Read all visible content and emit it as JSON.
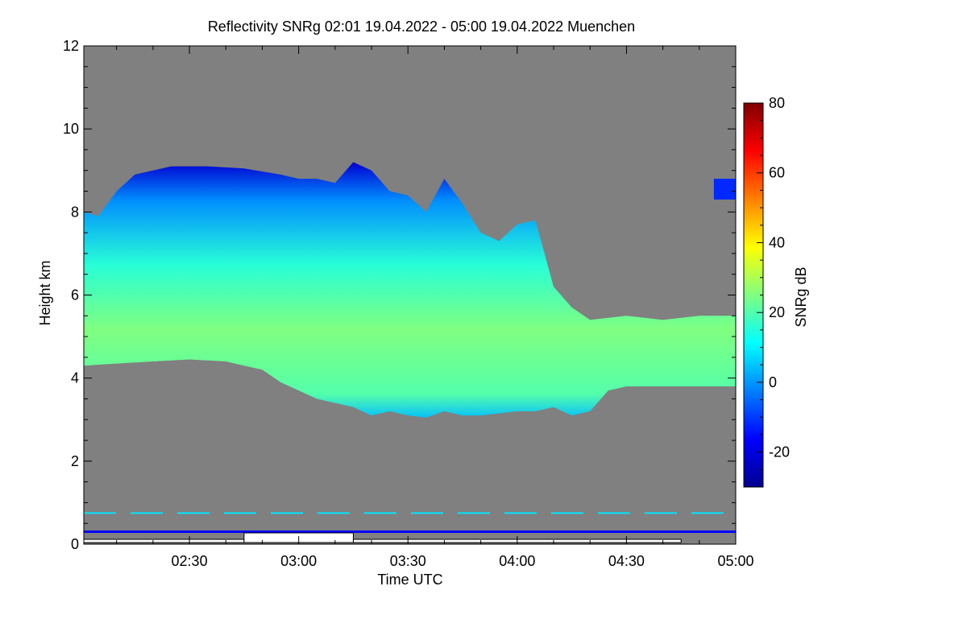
{
  "chart_data": {
    "type": "heatmap",
    "title": "Reflectivity SNRg   02:01 19.04.2022 - 05:00 19.04.2022 Muenchen",
    "xlabel": "Time UTC",
    "ylabel": "Height km",
    "colorbar_label": "SNRg dB",
    "xlim": [
      "02:01",
      "05:00"
    ],
    "ylim": [
      0,
      12
    ],
    "x_ticks": [
      "02:30",
      "03:00",
      "03:30",
      "04:00",
      "04:30",
      "05:00"
    ],
    "y_ticks": [
      0,
      2,
      4,
      6,
      8,
      10,
      12
    ],
    "colorbar_ticks": [
      -20,
      0,
      20,
      40,
      60,
      80
    ],
    "colorbar_range": [
      -30,
      80
    ],
    "background_color": "#808080",
    "colormap": [
      "#00008f",
      "#0000ff",
      "#0080ff",
      "#00ffff",
      "#80ff80",
      "#ffff00",
      "#ff8000",
      "#ff0000",
      "#800000"
    ],
    "cloud": {
      "top_km": [
        {
          "t": "02:01",
          "h": 8.0
        },
        {
          "t": "02:05",
          "h": 7.9
        },
        {
          "t": "02:10",
          "h": 8.5
        },
        {
          "t": "02:15",
          "h": 8.9
        },
        {
          "t": "02:20",
          "h": 9.0
        },
        {
          "t": "02:25",
          "h": 9.1
        },
        {
          "t": "02:35",
          "h": 9.1
        },
        {
          "t": "02:45",
          "h": 9.05
        },
        {
          "t": "02:55",
          "h": 8.9
        },
        {
          "t": "03:00",
          "h": 8.8
        },
        {
          "t": "03:05",
          "h": 8.8
        },
        {
          "t": "03:10",
          "h": 8.7
        },
        {
          "t": "03:15",
          "h": 9.2
        },
        {
          "t": "03:20",
          "h": 9.0
        },
        {
          "t": "03:25",
          "h": 8.5
        },
        {
          "t": "03:30",
          "h": 8.4
        },
        {
          "t": "03:35",
          "h": 8.0
        },
        {
          "t": "03:40",
          "h": 8.8
        },
        {
          "t": "03:45",
          "h": 8.2
        },
        {
          "t": "03:50",
          "h": 7.5
        },
        {
          "t": "03:55",
          "h": 7.3
        },
        {
          "t": "04:00",
          "h": 7.7
        },
        {
          "t": "04:05",
          "h": 7.8
        },
        {
          "t": "04:10",
          "h": 6.2
        },
        {
          "t": "04:15",
          "h": 5.7
        },
        {
          "t": "04:20",
          "h": 5.4
        },
        {
          "t": "04:30",
          "h": 5.5
        },
        {
          "t": "04:40",
          "h": 5.4
        },
        {
          "t": "04:50",
          "h": 5.5
        },
        {
          "t": "05:00",
          "h": 5.5
        }
      ],
      "base_km": [
        {
          "t": "02:01",
          "h": 4.3
        },
        {
          "t": "02:10",
          "h": 4.35
        },
        {
          "t": "02:20",
          "h": 4.4
        },
        {
          "t": "02:30",
          "h": 4.45
        },
        {
          "t": "02:40",
          "h": 4.4
        },
        {
          "t": "02:45",
          "h": 4.3
        },
        {
          "t": "02:50",
          "h": 4.2
        },
        {
          "t": "02:55",
          "h": 3.9
        },
        {
          "t": "03:00",
          "h": 3.7
        },
        {
          "t": "03:05",
          "h": 3.5
        },
        {
          "t": "03:10",
          "h": 3.4
        },
        {
          "t": "03:15",
          "h": 3.3
        },
        {
          "t": "03:20",
          "h": 3.1
        },
        {
          "t": "03:25",
          "h": 3.2
        },
        {
          "t": "03:30",
          "h": 3.1
        },
        {
          "t": "03:35",
          "h": 3.05
        },
        {
          "t": "03:40",
          "h": 3.2
        },
        {
          "t": "03:45",
          "h": 3.1
        },
        {
          "t": "03:50",
          "h": 3.1
        },
        {
          "t": "03:55",
          "h": 3.15
        },
        {
          "t": "04:00",
          "h": 3.2
        },
        {
          "t": "04:05",
          "h": 3.2
        },
        {
          "t": "04:10",
          "h": 3.3
        },
        {
          "t": "04:15",
          "h": 3.1
        },
        {
          "t": "04:20",
          "h": 3.2
        },
        {
          "t": "04:25",
          "h": 3.7
        },
        {
          "t": "04:30",
          "h": 3.8
        },
        {
          "t": "04:40",
          "h": 3.8
        },
        {
          "t": "04:50",
          "h": 3.8
        },
        {
          "t": "05:00",
          "h": 3.8
        }
      ],
      "peak_snr_db": 25
    },
    "patches": [
      {
        "t_start": "04:54",
        "t_end": "05:00",
        "h_bottom": 8.3,
        "h_top": 8.8
      }
    ],
    "lines": [
      {
        "h": 0.3,
        "color": "#0000ff"
      },
      {
        "h": 0.75,
        "color": "#00e5ff",
        "dashed": true
      }
    ],
    "bar_segments": [
      {
        "t_start": "02:01",
        "t_end": "02:45",
        "filled": false
      },
      {
        "t_start": "02:45",
        "t_end": "03:15",
        "filled": true
      },
      {
        "t_start": "03:15",
        "t_end": "04:45",
        "filled": false
      }
    ]
  }
}
